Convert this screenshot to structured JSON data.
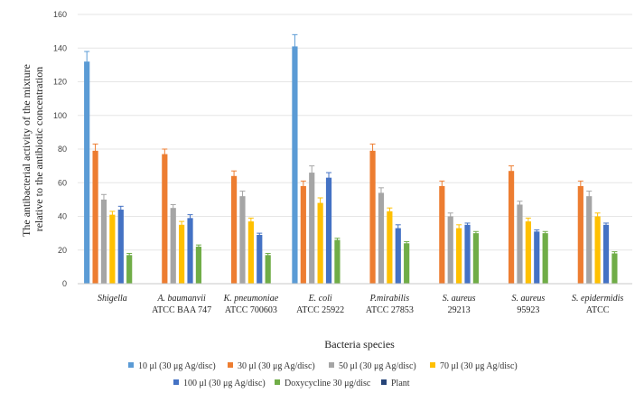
{
  "chart_data": {
    "type": "bar",
    "xlabel": "Bacteria species",
    "ylabel_line1": "The antibacterial activity of the mixture",
    "ylabel_line2": "relative to the antibiotic concentration",
    "ylim": [
      0,
      160
    ],
    "yticks": [
      "0",
      "20",
      "40",
      "60",
      "80",
      "100",
      "120",
      "140",
      "160"
    ],
    "grid": true,
    "legend_position": "bottom",
    "categories": [
      {
        "line1": "Shigella",
        "line2": ""
      },
      {
        "line1": "A. baumanvii",
        "line2": "ATCC BAA 747"
      },
      {
        "line1": "K. pneumoniae",
        "line2": "ATCC 700603"
      },
      {
        "line1": "E. coli",
        "line2": "ATCC 25922"
      },
      {
        "line1": "P.mirabilis",
        "line2": "ATCC 27853"
      },
      {
        "line1": "S. aureus",
        "line2": "29213"
      },
      {
        "line1": "S. aureus",
        "line2": "95923"
      },
      {
        "line1": "S. epidermidis",
        "line2": "ATCC"
      }
    ],
    "series": [
      {
        "name": "10 μl (30 μg Ag/disc)",
        "color": "#5b9bd5",
        "values": [
          132,
          null,
          null,
          141,
          null,
          null,
          null,
          null
        ],
        "errors": [
          6,
          null,
          null,
          7,
          null,
          null,
          null,
          null
        ]
      },
      {
        "name": "30 μl (30 μg Ag/disc)",
        "color": "#ed7d31",
        "values": [
          79,
          77,
          64,
          58,
          79,
          58,
          67,
          58
        ],
        "errors": [
          4,
          3,
          3,
          3,
          4,
          3,
          3,
          3
        ]
      },
      {
        "name": "50 μl (30 μg Ag/disc)",
        "color": "#a5a5a5",
        "values": [
          50,
          45,
          52,
          66,
          54,
          40,
          47,
          52
        ],
        "errors": [
          3,
          2,
          3,
          4,
          3,
          2,
          2,
          3
        ]
      },
      {
        "name": "70 μl (30 μg Ag/disc)",
        "color": "#ffc000",
        "values": [
          41,
          35,
          37,
          48,
          43,
          33,
          37,
          40
        ],
        "errors": [
          2,
          2,
          2,
          3,
          2,
          2,
          2,
          2
        ]
      },
      {
        "name": "100 μl (30 μg Ag/disc)",
        "color": "#4472c4",
        "values": [
          44,
          39,
          29,
          63,
          33,
          35,
          31,
          35
        ],
        "errors": [
          2,
          2,
          1,
          3,
          2,
          1,
          1,
          1
        ]
      },
      {
        "name": "Doxycycline 30 μg/disc",
        "color": "#70ad47",
        "values": [
          17,
          22,
          17,
          26,
          24,
          30,
          30,
          18
        ],
        "errors": [
          1,
          1,
          1,
          1,
          1,
          1,
          1,
          1
        ]
      },
      {
        "name": "Plant",
        "color": "#264478",
        "values": [
          null,
          null,
          null,
          null,
          null,
          null,
          null,
          null
        ],
        "errors": [
          null,
          null,
          null,
          null,
          null,
          null,
          null,
          null
        ]
      }
    ]
  }
}
